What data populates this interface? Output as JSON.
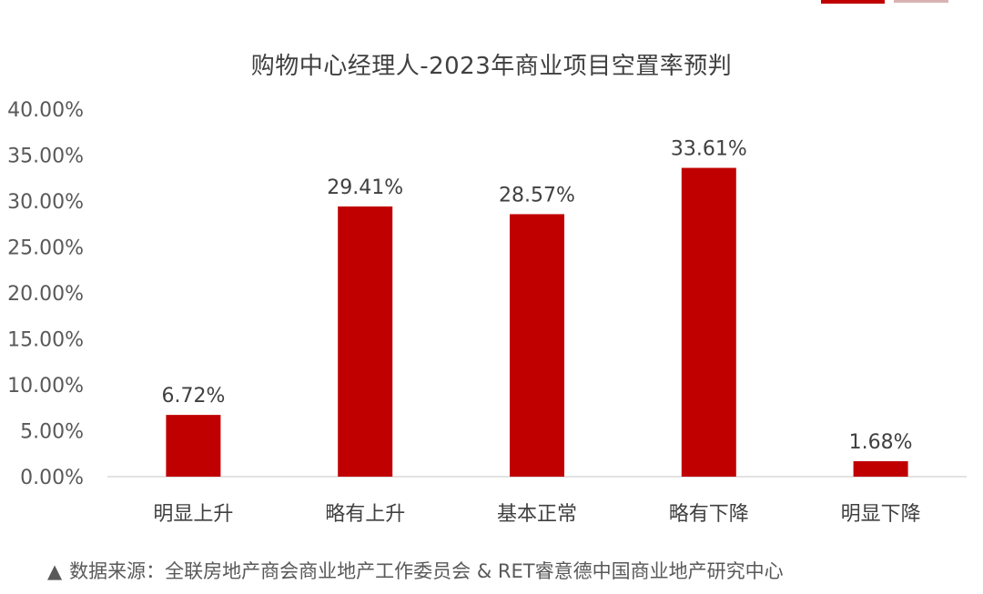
{
  "chart_data": {
    "type": "bar",
    "title": "购物中心经理人-2023年商业项目空置率预判",
    "categories": [
      "明显上升",
      "略有上升",
      "基本正常",
      "略有下降",
      "明显下降"
    ],
    "values": [
      6.72,
      29.41,
      28.57,
      33.61,
      1.68
    ],
    "data_labels": [
      "6.72%",
      "29.41%",
      "28.57%",
      "33.61%",
      "1.68%"
    ],
    "yticks": [
      "0.00%",
      "5.00%",
      "10.00%",
      "15.00%",
      "20.00%",
      "25.00%",
      "30.00%",
      "35.00%",
      "40.00%"
    ],
    "ylim": [
      0,
      40
    ],
    "grid": false,
    "bar_color": "#c00000",
    "xlabel": "",
    "ylabel": ""
  },
  "source": {
    "marker": "▲",
    "text": "数据来源：全联房地产商会商业地产工作委员会 & RET睿意德中国商业地产研究中心"
  }
}
